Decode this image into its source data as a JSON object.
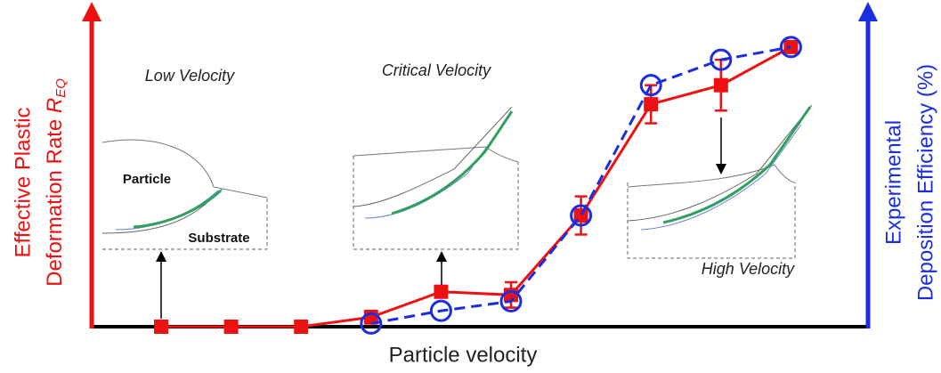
{
  "chart_data": {
    "type": "line",
    "x_label": "Particle velocity",
    "y_label": [
      "Effective Plastic",
      "Deformation Rate "
    ],
    "y_label_symbol": "R",
    "y_label_subscript": "EQ",
    "y2_label": [
      "Experimental",
      "Deposition Efficiency (%)"
    ],
    "categories": [
      null,
      null,
      null,
      null,
      null,
      null,
      null,
      null,
      null,
      null
    ],
    "ylim": [
      0,
      100
    ],
    "y2lim": [
      0,
      100
    ],
    "series": [
      {
        "name": null,
        "color": "#ee1111",
        "marker": "square",
        "dashed": false,
        "values": [
          0,
          0,
          0,
          3,
          11,
          10,
          35,
          70,
          76,
          88
        ],
        "error": [
          0,
          0,
          0,
          2,
          0,
          4,
          6,
          6,
          8,
          0
        ]
      },
      {
        "name": null,
        "color": "#1a2ee0",
        "marker": "circle",
        "dashed": true,
        "axis": "y2",
        "values": [
          null,
          null,
          null,
          1,
          5,
          8,
          35,
          76,
          84,
          88
        ]
      }
    ],
    "annotations": [
      "Low Velocity",
      "Critical Velocity",
      "High Velocity",
      "Particle",
      "Substrate"
    ]
  }
}
